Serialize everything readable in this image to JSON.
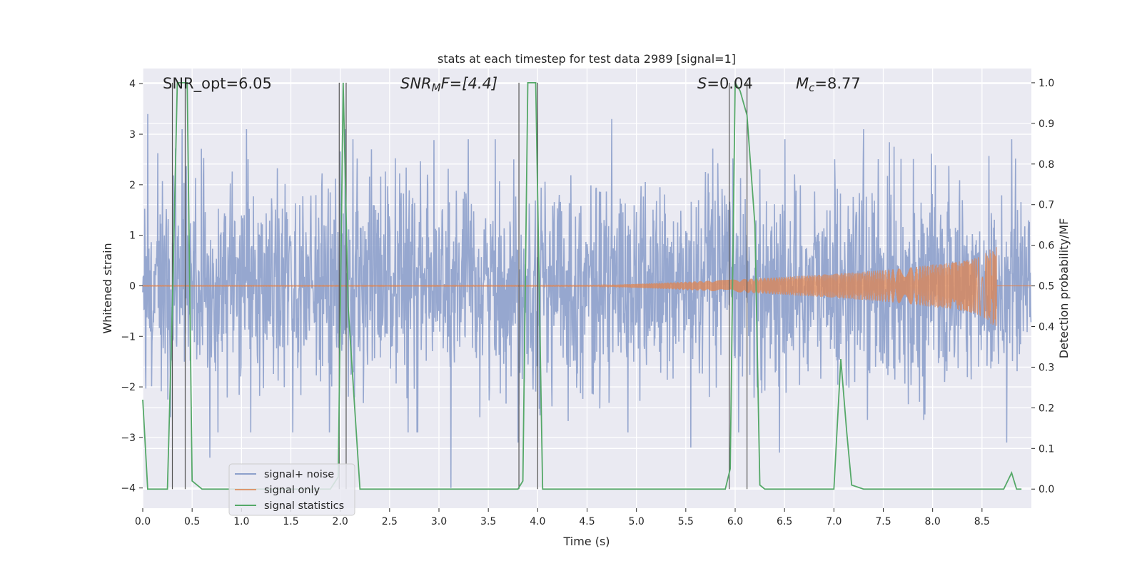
{
  "chart_data": {
    "type": "line",
    "title": "stats at each timestep for test data 2989 [signal=1]",
    "xlabel": "Time (s)",
    "ylabel": "Whitened strain",
    "y2label": "Detection probability/MF",
    "xlim": [
      0.0,
      9.0
    ],
    "ylim": [
      -4.4,
      4.3
    ],
    "y2lim": [
      -0.047,
      1.035
    ],
    "x_ticks": [
      0.0,
      0.5,
      1.0,
      1.5,
      2.0,
      2.5,
      3.0,
      3.5,
      4.0,
      4.5,
      5.0,
      5.5,
      6.0,
      6.5,
      7.0,
      7.5,
      8.0,
      8.5
    ],
    "x_tick_labels": [
      "0.0",
      "0.5",
      "1.0",
      "1.5",
      "2.0",
      "2.5",
      "3.0",
      "3.5",
      "4.0",
      "4.5",
      "5.0",
      "5.5",
      "6.0",
      "6.5",
      "7.0",
      "7.5",
      "8.0",
      "8.5"
    ],
    "y_ticks": [
      4,
      3,
      2,
      1,
      0,
      -1,
      -2,
      -3,
      -4
    ],
    "y_tick_labels": [
      "4",
      "3",
      "2",
      "1",
      "0",
      "−1",
      "−2",
      "−3",
      "−4"
    ],
    "y2_ticks": [
      1.0,
      0.9,
      0.8,
      0.7,
      0.6,
      0.5,
      0.4,
      0.3,
      0.2,
      0.1,
      0.0
    ],
    "y2_tick_labels": [
      "1.0",
      "0.9",
      "0.8",
      "0.7",
      "0.6",
      "0.5",
      "0.4",
      "0.3",
      "0.2",
      "0.1",
      "0.0"
    ],
    "annotations": {
      "snr_opt": "SNR_opt=6.05",
      "snr_mf_main": "SNR",
      "snr_mf_sub": "M",
      "snr_mf_rest": "F=[4.4]",
      "s_main": "S",
      "s_rest": "=0.04",
      "mc_main": "M",
      "mc_sub": "c",
      "mc_rest": "=8.77"
    },
    "legend": {
      "position": "lower-left",
      "entries": [
        "signal+ noise",
        "signal only",
        "signal statistics"
      ]
    },
    "colors": {
      "noise": "#8da0cb",
      "signal": "#dd8452",
      "stats": "#55a868",
      "vline": "#555555",
      "background": "#eaeaf2"
    },
    "series": [
      {
        "name": "signal+ noise",
        "kind": "noise",
        "description_values": {
          "duration": 9.0,
          "sample_rate": 256,
          "typical_peak": 2.2,
          "sigma": 1.0
        },
        "extreme_points": [
          {
            "x": 0.05,
            "y": 3.4
          },
          {
            "x": 0.28,
            "y": -2.6
          },
          {
            "x": 0.4,
            "y": 3.1
          },
          {
            "x": 0.68,
            "y": -3.4
          },
          {
            "x": 1.05,
            "y": 3.1
          },
          {
            "x": 2.05,
            "y": 3.1
          },
          {
            "x": 3.12,
            "y": -4.0
          },
          {
            "x": 3.8,
            "y": -3.1
          },
          {
            "x": 4.75,
            "y": 3.3
          },
          {
            "x": 5.55,
            "y": -3.2
          },
          {
            "x": 6.45,
            "y": -3.3
          },
          {
            "x": 7.3,
            "y": 3.1
          },
          {
            "x": 8.8,
            "y": 2.9
          },
          {
            "x": 8.75,
            "y": -3.1
          }
        ]
      },
      {
        "name": "signal only",
        "kind": "chirp",
        "start": 0.0,
        "grow_from": 4.5,
        "merger_time": 8.65,
        "peak_amplitude": 0.8
      },
      {
        "name": "signal statistics",
        "axis": "y2",
        "points": [
          [
            0.0,
            0.22
          ],
          [
            0.05,
            0.0
          ],
          [
            0.25,
            0.0
          ],
          [
            0.3,
            0.45
          ],
          [
            0.35,
            1.0
          ],
          [
            0.45,
            1.0
          ],
          [
            0.5,
            0.02
          ],
          [
            0.6,
            0.0
          ],
          [
            0.95,
            0.0
          ],
          [
            1.9,
            0.0
          ],
          [
            1.98,
            0.03
          ],
          [
            2.03,
            1.0
          ],
          [
            2.08,
            0.45
          ],
          [
            2.2,
            0.0
          ],
          [
            3.8,
            0.0
          ],
          [
            3.85,
            0.02
          ],
          [
            3.9,
            1.0
          ],
          [
            3.98,
            1.0
          ],
          [
            4.05,
            0.0
          ],
          [
            4.08,
            0.0
          ],
          [
            5.9,
            0.0
          ],
          [
            5.95,
            0.05
          ],
          [
            6.0,
            1.0
          ],
          [
            6.05,
            0.98
          ],
          [
            6.12,
            0.92
          ],
          [
            6.2,
            0.65
          ],
          [
            6.25,
            0.01
          ],
          [
            6.3,
            0.0
          ],
          [
            7.0,
            0.0
          ],
          [
            7.07,
            0.32
          ],
          [
            7.13,
            0.14
          ],
          [
            7.18,
            0.01
          ],
          [
            7.3,
            0.0
          ],
          [
            8.72,
            0.0
          ],
          [
            8.8,
            0.04
          ],
          [
            8.85,
            0.0
          ],
          [
            8.9,
            0.0
          ]
        ]
      }
    ],
    "vertical_lines": [
      0.3,
      0.43,
      1.99,
      2.06,
      3.81,
      4.0,
      5.94,
      6.12
    ]
  }
}
